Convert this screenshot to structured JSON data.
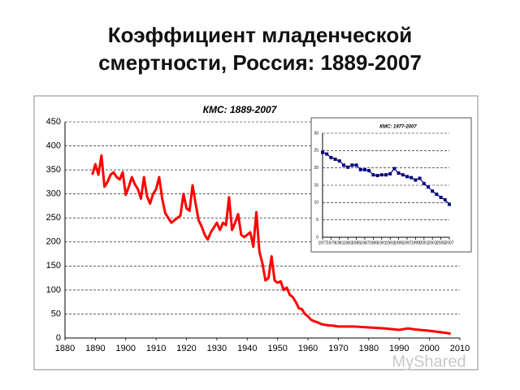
{
  "header": {
    "title": "Коэффициент младенческой смертности, Россия: 1889-2007"
  },
  "watermark": "MyShared",
  "chart_data": [
    {
      "type": "line",
      "title": "КМС: 1889-2007",
      "color": "#ff0000",
      "grid": true,
      "x": [
        1889,
        1890,
        1891,
        1892,
        1893,
        1894,
        1895,
        1896,
        1897,
        1898,
        1899,
        1900,
        1901,
        1902,
        1903,
        1904,
        1905,
        1906,
        1907,
        1908,
        1909,
        1910,
        1911,
        1912,
        1913,
        1914,
        1915,
        1916,
        1917,
        1918,
        1919,
        1920,
        1921,
        1922,
        1923,
        1924,
        1925,
        1926,
        1927,
        1928,
        1929,
        1930,
        1931,
        1932,
        1933,
        1934,
        1935,
        1936,
        1937,
        1938,
        1939,
        1940,
        1941,
        1942,
        1943,
        1944,
        1945,
        1946,
        1947,
        1948,
        1949,
        1950,
        1951,
        1952,
        1953,
        1954,
        1955,
        1956,
        1957,
        1958,
        1959,
        1960,
        1961,
        1962,
        1963,
        1964,
        1965,
        1966,
        1967,
        1968,
        1969,
        1970,
        1975,
        1980,
        1985,
        1990,
        1993,
        1995,
        2000,
        2005,
        2007
      ],
      "series": [
        {
          "values": [
            340,
            362,
            340,
            380,
            315,
            325,
            340,
            345,
            335,
            330,
            345,
            298,
            315,
            335,
            320,
            310,
            290,
            335,
            295,
            280,
            300,
            310,
            335,
            290,
            260,
            250,
            240,
            245,
            250,
            255,
            300,
            270,
            265,
            318,
            280,
            245,
            232,
            215,
            205,
            220,
            230,
            240,
            225,
            240,
            235,
            293,
            225,
            240,
            258,
            215,
            210,
            215,
            220,
            190,
            262,
            180,
            155,
            120,
            125,
            170,
            120,
            115,
            118,
            100,
            105,
            90,
            85,
            75,
            62,
            60,
            50,
            45,
            38,
            35,
            33,
            30,
            28,
            27,
            26,
            26,
            25,
            24,
            24,
            22,
            20,
            17,
            20,
            18,
            15,
            11,
            9
          ]
        }
      ],
      "xlim": [
        1880,
        2010
      ],
      "xticks": [
        1880,
        1890,
        1900,
        1910,
        1920,
        1930,
        1940,
        1950,
        1960,
        1970,
        1980,
        1990,
        2000,
        2010
      ],
      "ylim": [
        0,
        450
      ],
      "yticks": [
        0,
        50,
        100,
        150,
        200,
        250,
        300,
        350,
        400,
        450
      ]
    },
    {
      "type": "line",
      "title": "КМС: 1977-2007",
      "color": "#000080",
      "marker": "square",
      "grid": true,
      "x": [
        1977,
        1978,
        1979,
        1980,
        1981,
        1982,
        1983,
        1984,
        1985,
        1986,
        1987,
        1988,
        1989,
        1990,
        1991,
        1992,
        1993,
        1994,
        1995,
        1996,
        1997,
        1998,
        1999,
        2000,
        2001,
        2002,
        2003,
        2004,
        2005,
        2006,
        2007
      ],
      "series": [
        {
          "values": [
            24.5,
            24,
            23,
            22.5,
            22,
            20.8,
            20.2,
            20.8,
            20.8,
            19.5,
            19.5,
            19.2,
            18,
            17.8,
            18,
            18,
            18.3,
            19.8,
            18.5,
            18,
            17.5,
            17.2,
            16.5,
            17,
            15.5,
            14.5,
            13.3,
            12.4,
            11.5,
            10.8,
            9.5
          ]
        }
      ],
      "xlim": [
        1977,
        2007
      ],
      "xticks": [
        1977,
        1979,
        1981,
        1983,
        1985,
        1987,
        1989,
        1991,
        1993,
        1995,
        1997,
        1999,
        2001,
        2003,
        2005,
        2007
      ],
      "ylim": [
        0,
        30
      ],
      "yticks": [
        0,
        5,
        10,
        15,
        20,
        25,
        30
      ]
    }
  ]
}
